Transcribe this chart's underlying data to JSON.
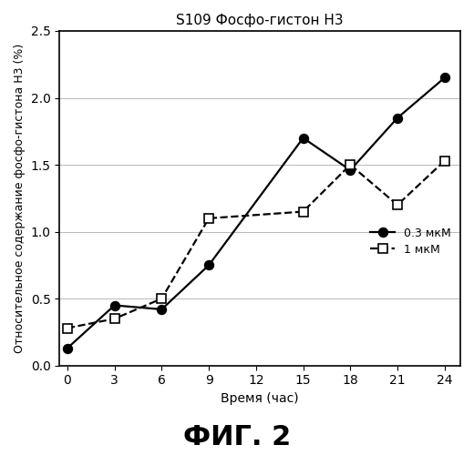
{
  "title": "S109 Фосфо-гистон Н3",
  "xlabel": "Время (час)",
  "ylabel": "Относительное содержание фосфо-гистона Н3 (%)",
  "fig_label": "ФИГ. 2",
  "series1": {
    "label": "0.3 мкМ",
    "x": [
      0,
      3,
      6,
      9,
      15,
      18,
      21,
      24
    ],
    "y": [
      0.13,
      0.45,
      0.42,
      0.75,
      1.7,
      1.46,
      1.85,
      2.15
    ],
    "color": "#000000",
    "linestyle": "-",
    "marker": "o",
    "markerfacecolor": "#000000",
    "markersize": 7,
    "linewidth": 1.6
  },
  "series2": {
    "label": "1 мкМ",
    "x": [
      0,
      3,
      6,
      9,
      15,
      18,
      21,
      24
    ],
    "y": [
      0.28,
      0.35,
      0.5,
      1.1,
      1.15,
      1.5,
      1.2,
      1.53
    ],
    "color": "#000000",
    "linestyle": "--",
    "marker": "s",
    "markerfacecolor": "#ffffff",
    "markersize": 7,
    "linewidth": 1.6
  },
  "xlim": [
    -0.5,
    25
  ],
  "ylim": [
    0,
    2.5
  ],
  "xticks": [
    0,
    3,
    6,
    9,
    12,
    15,
    18,
    21,
    24
  ],
  "yticks": [
    0.0,
    0.5,
    1.0,
    1.5,
    2.0,
    2.5
  ],
  "background_color": "#ffffff",
  "title_fontsize": 11,
  "label_fontsize": 10,
  "tick_fontsize": 10,
  "legend_fontsize": 9,
  "fig_label_fontsize": 22
}
